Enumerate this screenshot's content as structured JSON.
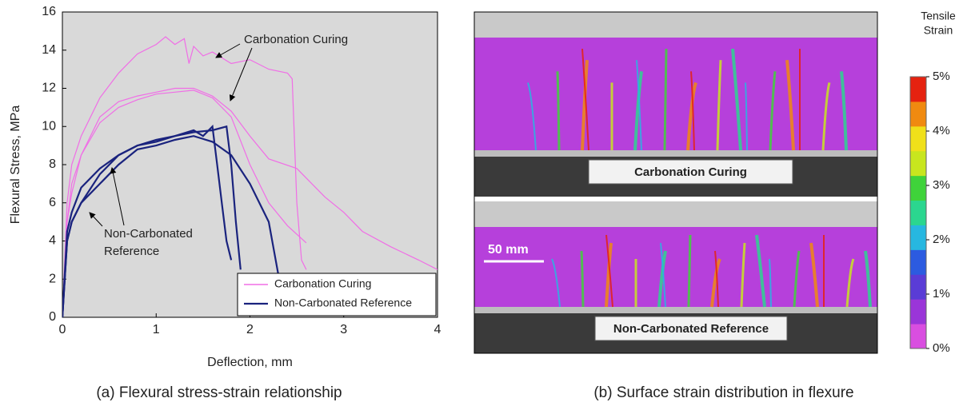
{
  "chart_data": [
    {
      "type": "line",
      "xlabel": "Deflection, mm",
      "ylabel": "Flexural Stress, MPa",
      "caption": "(a) Flexural stress-strain relationship",
      "xlim": [
        0,
        4
      ],
      "ylim": [
        0,
        16
      ],
      "xticks": [
        0,
        1,
        2,
        3,
        4
      ],
      "yticks": [
        0,
        2,
        4,
        6,
        8,
        10,
        12,
        14,
        16
      ],
      "background": "#d9d9d9",
      "legend": "lower right",
      "annotations": [
        {
          "lines": [
            "Carbonation Curing"
          ]
        },
        {
          "lines": [
            "Non-Carbonated",
            "Reference"
          ]
        }
      ],
      "series": [
        {
          "name": "Carbonation Curing",
          "color": "#f06ee6",
          "specimens": [
            {
              "x": [
                0,
                0.05,
                0.1,
                0.2,
                0.4,
                0.6,
                0.8,
                1.0,
                1.1,
                1.2,
                1.3,
                1.35,
                1.4,
                1.5,
                1.6,
                1.8,
                2.0,
                2.2,
                2.4,
                2.45,
                2.5,
                2.55,
                2.6
              ],
              "values": [
                0,
                6,
                8,
                9.5,
                11.5,
                12.8,
                13.8,
                14.3,
                14.7,
                14.3,
                14.6,
                13.3,
                14.2,
                13.7,
                13.9,
                13.3,
                13.5,
                13.0,
                12.8,
                12.5,
                6,
                3,
                2.5
              ]
            },
            {
              "x": [
                0,
                0.05,
                0.1,
                0.2,
                0.4,
                0.6,
                0.8,
                1.0,
                1.2,
                1.4,
                1.6,
                1.8,
                2.0,
                2.2,
                2.4,
                2.6
              ],
              "values": [
                0,
                5,
                7,
                8.5,
                10.2,
                11,
                11.4,
                11.7,
                11.8,
                11.9,
                11.5,
                10.5,
                8,
                6,
                4.8,
                3.9
              ]
            },
            {
              "x": [
                0,
                0.05,
                0.1,
                0.2,
                0.4,
                0.6,
                0.8,
                1.0,
                1.2,
                1.4,
                1.6,
                1.8,
                2.0,
                2.2,
                2.5,
                2.8,
                3.0,
                3.2,
                3.5,
                3.8,
                4.0
              ],
              "values": [
                0,
                5,
                6.5,
                8.5,
                10.5,
                11.3,
                11.6,
                11.8,
                12.0,
                12.0,
                11.6,
                10.8,
                9.5,
                8.3,
                7.8,
                6.3,
                5.5,
                4.5,
                3.7,
                3.0,
                2.5
              ]
            }
          ]
        },
        {
          "name": "Non-Carbonated Reference",
          "color": "#1a237e",
          "specimens": [
            {
              "x": [
                0,
                0.05,
                0.1,
                0.2,
                0.4,
                0.6,
                0.8,
                1.0,
                1.2,
                1.4,
                1.5,
                1.6,
                1.65,
                1.7,
                1.75,
                1.8
              ],
              "values": [
                0,
                4,
                5,
                6,
                7.5,
                8.5,
                9.0,
                9.3,
                9.5,
                9.8,
                9.5,
                10.0,
                8,
                6,
                4,
                3
              ]
            },
            {
              "x": [
                0,
                0.05,
                0.1,
                0.2,
                0.4,
                0.6,
                0.8,
                1.0,
                1.2,
                1.4,
                1.6,
                1.75,
                1.8,
                1.85,
                1.9
              ],
              "values": [
                0,
                4.5,
                5.5,
                6.8,
                7.8,
                8.5,
                9,
                9.2,
                9.5,
                9.7,
                9.8,
                10,
                8,
                5,
                2.5
              ]
            },
            {
              "x": [
                0,
                0.05,
                0.1,
                0.2,
                0.4,
                0.6,
                0.8,
                1.0,
                1.2,
                1.4,
                1.6,
                1.8,
                2.0,
                2.2,
                2.3
              ],
              "values": [
                0,
                4,
                5,
                6,
                7,
                8,
                8.8,
                9.0,
                9.3,
                9.5,
                9.2,
                8.5,
                7,
                5,
                2.3
              ]
            }
          ]
        }
      ]
    },
    {
      "type": "image",
      "caption": "(b) Surface strain distribution in flexure",
      "panels": [
        "Carbonation Curing",
        "Non-Carbonated Reference"
      ],
      "scale_bar": "50 mm",
      "colorbar": {
        "title": [
          "Tensile",
          "Strain"
        ],
        "lim": [
          0,
          5
        ],
        "colors": [
          "#d94ee0",
          "#9a35d8",
          "#5a3cd6",
          "#2c5be0",
          "#27b7e0",
          "#2bd68f",
          "#3fd33a",
          "#c8e61e",
          "#f0e01a",
          "#f08a10",
          "#e52210"
        ],
        "ticks": [
          {
            "value": 0,
            "label": "0%"
          },
          {
            "value": 1,
            "label": "1%"
          },
          {
            "value": 2,
            "label": "2%"
          },
          {
            "value": 3,
            "label": "3%"
          },
          {
            "value": 4,
            "label": "4%"
          },
          {
            "value": 5,
            "label": "5%"
          }
        ]
      }
    }
  ]
}
